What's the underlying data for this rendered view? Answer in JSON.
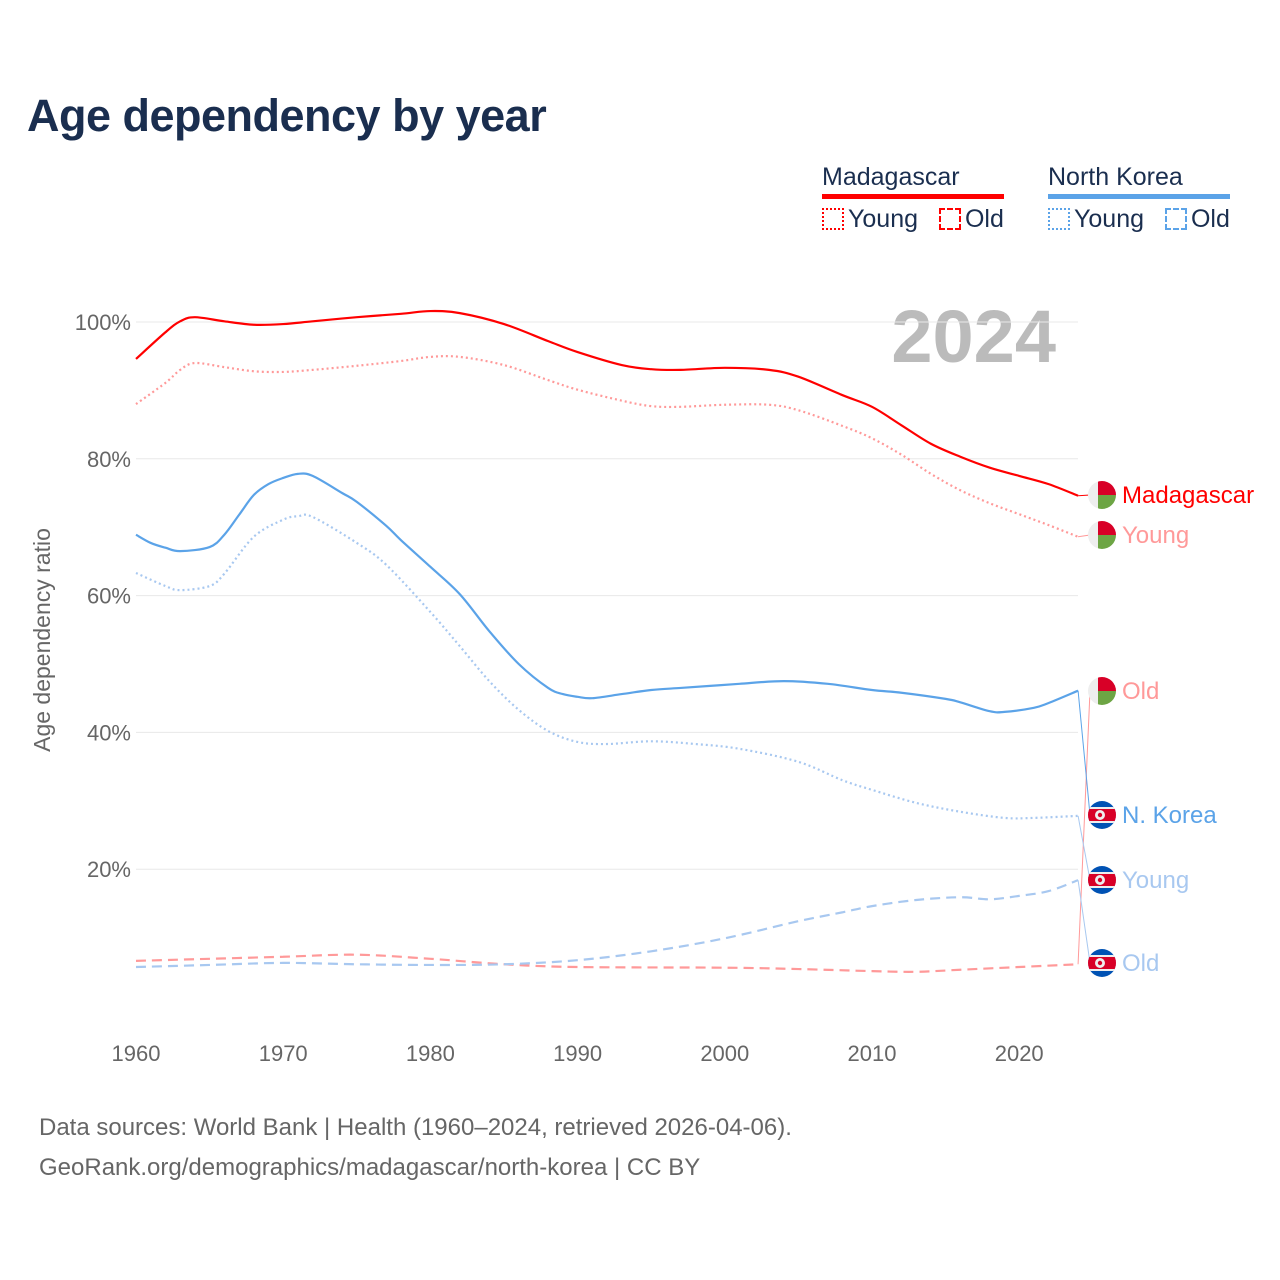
{
  "title": "Age dependency by year",
  "legend": {
    "groups": [
      {
        "name": "Madagascar",
        "color": "#ff0000",
        "young": "Young",
        "old": "Old"
      },
      {
        "name": "North Korea",
        "color": "#5ba3e8",
        "young": "Young",
        "old": "Old"
      }
    ]
  },
  "year_label": "2024",
  "footer": {
    "line1": "Data sources: World Bank | Health (1960–2024, retrieved 2026-04-06).",
    "line2": "GeoRank.org/demographics/madagascar/north-korea | CC BY"
  },
  "chart_data": {
    "type": "line",
    "title": "Age dependency by year",
    "xlabel": "",
    "ylabel": "Age dependency ratio",
    "xlim": [
      1960,
      2024
    ],
    "ylim": [
      0,
      100
    ],
    "x_ticks": [
      "1960",
      "1970",
      "1980",
      "1990",
      "2000",
      "2010",
      "2020"
    ],
    "y_ticks": [
      "20%",
      "40%",
      "60%",
      "80%",
      "100%"
    ],
    "grid": true,
    "series": [
      {
        "name": "Madagascar",
        "end_label": "Madagascar",
        "flag": "madagascar",
        "style": "solid",
        "color": "#ff0000",
        "points": [
          [
            1960,
            94.6
          ],
          [
            1962,
            98.5
          ],
          [
            1963,
            100.1
          ],
          [
            1964,
            100.7
          ],
          [
            1966,
            100.1
          ],
          [
            1968,
            99.6
          ],
          [
            1970,
            99.7
          ],
          [
            1972,
            100.1
          ],
          [
            1975,
            100.7
          ],
          [
            1978,
            101.2
          ],
          [
            1980,
            101.6
          ],
          [
            1982,
            101.3
          ],
          [
            1985,
            99.7
          ],
          [
            1988,
            97.2
          ],
          [
            1990,
            95.6
          ],
          [
            1993,
            93.7
          ],
          [
            1995,
            93.1
          ],
          [
            1997,
            93.0
          ],
          [
            2000,
            93.3
          ],
          [
            2003,
            93.0
          ],
          [
            2005,
            92.0
          ],
          [
            2008,
            89.3
          ],
          [
            2010,
            87.6
          ],
          [
            2012,
            84.9
          ],
          [
            2014,
            82.2
          ],
          [
            2016,
            80.3
          ],
          [
            2018,
            78.7
          ],
          [
            2020,
            77.5
          ],
          [
            2022,
            76.3
          ],
          [
            2024,
            74.6
          ]
        ]
      },
      {
        "name": "Madagascar Young",
        "end_label": "Young",
        "flag": "madagascar",
        "style": "dotted",
        "color": "#ff9999",
        "points": [
          [
            1960,
            88.0
          ],
          [
            1962,
            91.1
          ],
          [
            1963,
            93.0
          ],
          [
            1964,
            94.0
          ],
          [
            1966,
            93.4
          ],
          [
            1968,
            92.8
          ],
          [
            1970,
            92.7
          ],
          [
            1972,
            93.0
          ],
          [
            1975,
            93.6
          ],
          [
            1978,
            94.3
          ],
          [
            1980,
            94.9
          ],
          [
            1982,
            94.9
          ],
          [
            1985,
            93.7
          ],
          [
            1988,
            91.5
          ],
          [
            1990,
            90.1
          ],
          [
            1993,
            88.5
          ],
          [
            1995,
            87.7
          ],
          [
            1997,
            87.6
          ],
          [
            2000,
            87.9
          ],
          [
            2003,
            87.9
          ],
          [
            2005,
            87.1
          ],
          [
            2008,
            84.8
          ],
          [
            2010,
            83.0
          ],
          [
            2012,
            80.6
          ],
          [
            2014,
            77.8
          ],
          [
            2016,
            75.4
          ],
          [
            2018,
            73.5
          ],
          [
            2020,
            71.9
          ],
          [
            2022,
            70.3
          ],
          [
            2024,
            68.6
          ]
        ]
      },
      {
        "name": "Madagascar Old",
        "end_label": "Old",
        "flag": "madagascar",
        "style": "dashed",
        "color": "#ff9999",
        "points": [
          [
            1960,
            6.6
          ],
          [
            1965,
            6.9
          ],
          [
            1970,
            7.2
          ],
          [
            1975,
            7.5
          ],
          [
            1980,
            6.9
          ],
          [
            1985,
            6.1
          ],
          [
            1990,
            5.7
          ],
          [
            2000,
            5.6
          ],
          [
            2005,
            5.4
          ],
          [
            2010,
            5.1
          ],
          [
            2013,
            5.0
          ],
          [
            2016,
            5.3
          ],
          [
            2020,
            5.7
          ],
          [
            2024,
            6.1
          ]
        ]
      },
      {
        "name": "North Korea",
        "end_label": "N. Korea",
        "flag": "north-korea",
        "style": "solid",
        "color": "#5ba3e8",
        "points": [
          [
            1960,
            68.9
          ],
          [
            1961,
            67.7
          ],
          [
            1962,
            67.0
          ],
          [
            1963,
            66.5
          ],
          [
            1965,
            67.1
          ],
          [
            1966,
            68.9
          ],
          [
            1967,
            71.8
          ],
          [
            1968,
            74.7
          ],
          [
            1969,
            76.3
          ],
          [
            1970,
            77.2
          ],
          [
            1971,
            77.8
          ],
          [
            1972,
            77.5
          ],
          [
            1974,
            75.0
          ],
          [
            1975,
            73.7
          ],
          [
            1977,
            70.2
          ],
          [
            1978,
            68.1
          ],
          [
            1980,
            64.2
          ],
          [
            1982,
            60.2
          ],
          [
            1984,
            54.8
          ],
          [
            1986,
            50.0
          ],
          [
            1988,
            46.5
          ],
          [
            1989,
            45.6
          ],
          [
            1990,
            45.2
          ],
          [
            1991,
            45.0
          ],
          [
            1993,
            45.6
          ],
          [
            1995,
            46.2
          ],
          [
            1997,
            46.5
          ],
          [
            1999,
            46.8
          ],
          [
            2001,
            47.1
          ],
          [
            2004,
            47.5
          ],
          [
            2007,
            47.1
          ],
          [
            2010,
            46.2
          ],
          [
            2012,
            45.8
          ],
          [
            2015,
            44.9
          ],
          [
            2016,
            44.4
          ],
          [
            2018,
            43.1
          ],
          [
            2019,
            43.0
          ],
          [
            2021,
            43.6
          ],
          [
            2022,
            44.3
          ],
          [
            2024,
            46.1
          ]
        ]
      },
      {
        "name": "North Korea Young",
        "end_label": "Young",
        "flag": "north-korea",
        "style": "dotted",
        "color": "#a8c8f0",
        "points": [
          [
            1960,
            63.3
          ],
          [
            1962,
            61.4
          ],
          [
            1963,
            60.8
          ],
          [
            1965,
            61.4
          ],
          [
            1966,
            63.2
          ],
          [
            1968,
            68.6
          ],
          [
            1970,
            71.1
          ],
          [
            1971,
            71.6
          ],
          [
            1972,
            71.5
          ],
          [
            1975,
            67.7
          ],
          [
            1977,
            64.5
          ],
          [
            1980,
            57.6
          ],
          [
            1982,
            52.6
          ],
          [
            1984,
            47.5
          ],
          [
            1986,
            43.3
          ],
          [
            1988,
            40.2
          ],
          [
            1990,
            38.6
          ],
          [
            1992,
            38.3
          ],
          [
            1995,
            38.7
          ],
          [
            1998,
            38.3
          ],
          [
            2001,
            37.6
          ],
          [
            2005,
            35.7
          ],
          [
            2008,
            33.0
          ],
          [
            2010,
            31.6
          ],
          [
            2013,
            29.7
          ],
          [
            2016,
            28.4
          ],
          [
            2019,
            27.5
          ],
          [
            2021,
            27.5
          ],
          [
            2024,
            27.8
          ]
        ]
      },
      {
        "name": "North Korea Old",
        "end_label": "Old",
        "flag": "north-korea",
        "style": "dashed",
        "color": "#a8c8f0",
        "points": [
          [
            1960,
            5.7
          ],
          [
            1965,
            6.0
          ],
          [
            1970,
            6.3
          ],
          [
            1975,
            6.1
          ],
          [
            1980,
            6.0
          ],
          [
            1985,
            6.1
          ],
          [
            1990,
            6.7
          ],
          [
            1995,
            8.0
          ],
          [
            2000,
            9.9
          ],
          [
            2005,
            12.4
          ],
          [
            2008,
            13.7
          ],
          [
            2010,
            14.6
          ],
          [
            2013,
            15.5
          ],
          [
            2016,
            15.9
          ],
          [
            2018,
            15.6
          ],
          [
            2020,
            16.1
          ],
          [
            2022,
            16.8
          ],
          [
            2024,
            18.4
          ]
        ]
      }
    ]
  }
}
